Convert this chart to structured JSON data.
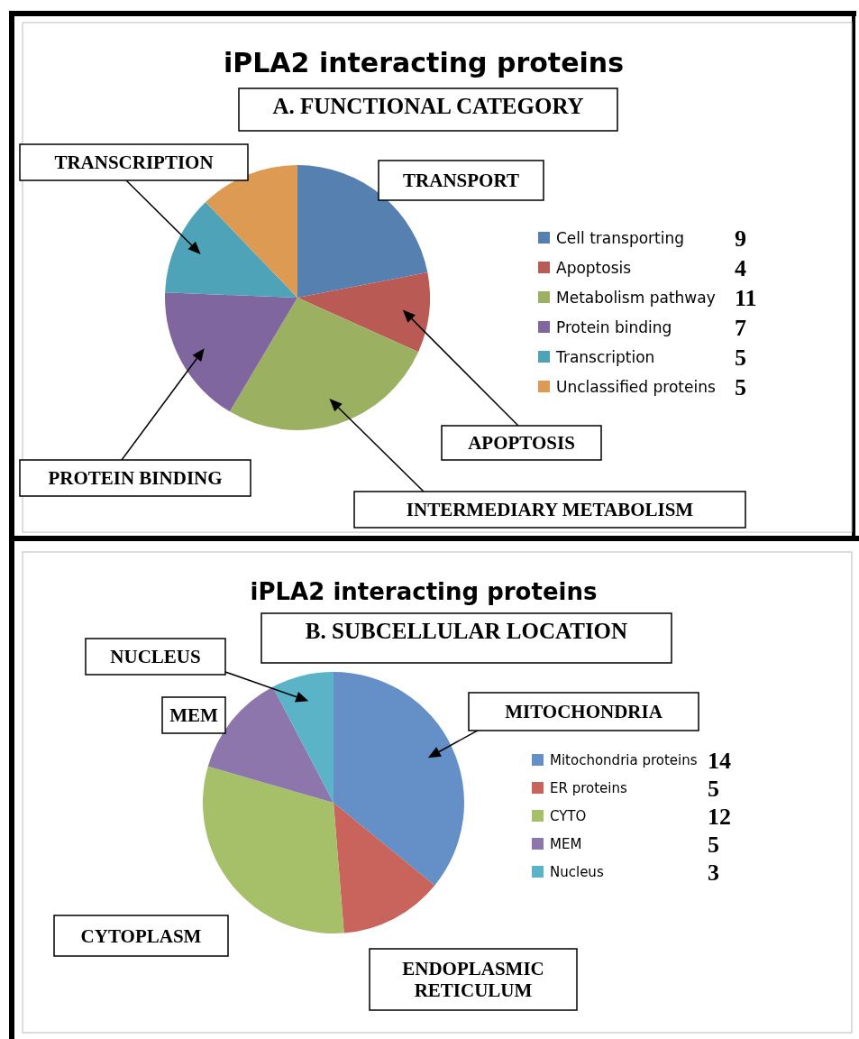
{
  "chart_data": [
    {
      "type": "pie",
      "title": "iPLA2 interacting proteins",
      "subtitle": "A. FUNCTIONAL CATEGORY",
      "categories": [
        "Cell transporting",
        "Apoptosis",
        "Metabolism pathway",
        "Protein binding",
        "Transcription",
        "Unclassified proteins"
      ],
      "values": [
        9,
        4,
        11,
        7,
        5,
        5
      ],
      "colors": [
        "#5580b0",
        "#b95b54",
        "#9bb061",
        "#80669f",
        "#4fa3b8",
        "#dd9a52"
      ],
      "data_labels": true,
      "legend": "right",
      "annotations": [
        "TRANSCRIPTION",
        "TRANSPORT",
        "APOPTOSIS",
        "PROTEIN BINDING",
        "INTERMEDIARY METABOLISM"
      ]
    },
    {
      "type": "pie",
      "title": "iPLA2 interacting proteins",
      "subtitle": "B. SUBCELLULAR LOCATION",
      "categories": [
        "Mitochondria proteins",
        "ER proteins",
        "CYTO",
        "MEM",
        "Nucleus"
      ],
      "values": [
        14,
        5,
        12,
        5,
        3
      ],
      "colors": [
        "#6490c7",
        "#c8645c",
        "#a6c06a",
        "#8c76ab",
        "#5bb3c8"
      ],
      "data_labels": true,
      "legend": "right",
      "annotations": [
        "NUCLEUS",
        "MEM",
        "MITOCHONDRIA",
        "CYTOPLASM",
        "ENDOPLASMIC RETICULUM"
      ]
    }
  ]
}
